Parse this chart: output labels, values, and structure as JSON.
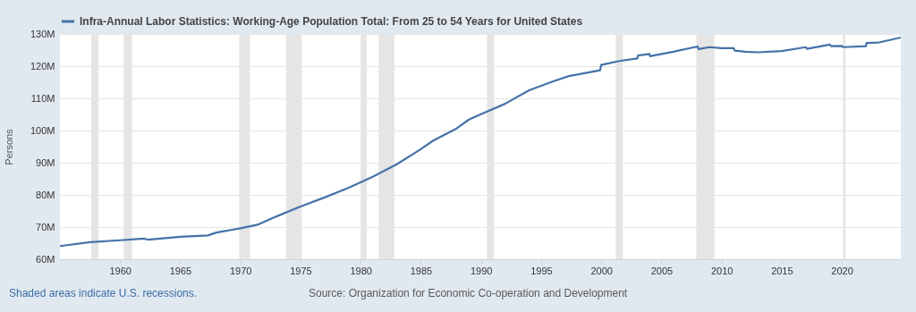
{
  "chart_data": {
    "type": "line",
    "ylabel": "Persons",
    "legend": "top",
    "grid": "y",
    "xlim": [
      1955,
      2024.9
    ],
    "xticks": [
      1960,
      1965,
      1970,
      1975,
      1980,
      1985,
      1990,
      1995,
      2000,
      2005,
      2010,
      2015,
      2020
    ],
    "ylim": [
      60,
      130
    ],
    "yticks": [
      {
        "value": 60,
        "label": "60M"
      },
      {
        "value": 70,
        "label": "70M"
      },
      {
        "value": 80,
        "label": "80M"
      },
      {
        "value": 90,
        "label": "90M"
      },
      {
        "value": 100,
        "label": "100M"
      },
      {
        "value": 110,
        "label": "110M"
      },
      {
        "value": 120,
        "label": "120M"
      },
      {
        "value": 130,
        "label": "130M"
      }
    ],
    "series": [
      {
        "name": "Infra-Annual Labor Statistics: Working-Age Population Total: From 25 to 54 Years for United States",
        "color": "#4572a7",
        "x": [
          1955,
          1957.5,
          1960,
          1962,
          1962.3,
          1965,
          1967.3,
          1968,
          1970,
          1971.5,
          1973,
          1975,
          1977,
          1979,
          1981,
          1983,
          1985,
          1986,
          1988,
          1989,
          1990,
          1992,
          1994,
          1996,
          1997.3,
          1999,
          1999.9,
          2000,
          2001.5,
          2003,
          2003.05,
          2004,
          2004.05,
          2006,
          2008,
          2008.1,
          2009,
          2010,
          2011,
          2011.1,
          2012,
          2013,
          2015,
          2017,
          2017.1,
          2019,
          2019.1,
          2020,
          2020.1,
          2022,
          2022.05,
          2023,
          2024.9
        ],
        "values": [
          64.1,
          65.3,
          65.9,
          66.4,
          66.1,
          67.0,
          67.4,
          68.3,
          69.6,
          70.8,
          73.3,
          76.4,
          79.2,
          82.2,
          85.6,
          89.5,
          94.2,
          96.8,
          100.7,
          103.4,
          105.1,
          108.3,
          112.5,
          115.3,
          116.9,
          118.1,
          118.7,
          120.4,
          121.6,
          122.4,
          123.3,
          123.8,
          123.1,
          124.5,
          126.1,
          125.3,
          125.9,
          125.6,
          125.6,
          124.8,
          124.5,
          124.3,
          124.7,
          125.9,
          125.4,
          126.7,
          126.2,
          126.3,
          125.9,
          126.2,
          127.2,
          127.3,
          128.9
        ]
      }
    ],
    "bands": [
      {
        "axis": "x",
        "from": 1957.6,
        "to": 1958.2,
        "color": "#e5e5e5"
      },
      {
        "axis": "x",
        "from": 1960.3,
        "to": 1961.0,
        "color": "#e5e5e5"
      },
      {
        "axis": "x",
        "from": 1969.9,
        "to": 1970.8,
        "color": "#e5e5e5"
      },
      {
        "axis": "x",
        "from": 1973.8,
        "to": 1975.1,
        "color": "#e5e5e5"
      },
      {
        "axis": "x",
        "from": 1980.0,
        "to": 1980.5,
        "color": "#e5e5e5"
      },
      {
        "axis": "x",
        "from": 1981.5,
        "to": 1982.8,
        "color": "#e5e5e5"
      },
      {
        "axis": "x",
        "from": 1990.5,
        "to": 1991.1,
        "color": "#e5e5e5"
      },
      {
        "axis": "x",
        "from": 2001.2,
        "to": 2001.8,
        "color": "#e5e5e5"
      },
      {
        "axis": "x",
        "from": 2007.9,
        "to": 2009.4,
        "color": "#e5e5e5"
      },
      {
        "axis": "x",
        "from": 2020.1,
        "to": 2020.3,
        "color": "#e5e5e5"
      }
    ],
    "annotations": [
      "Shaded areas indicate U.S. recessions.",
      "Source: Organization for Economic Co-operation and Development"
    ]
  }
}
